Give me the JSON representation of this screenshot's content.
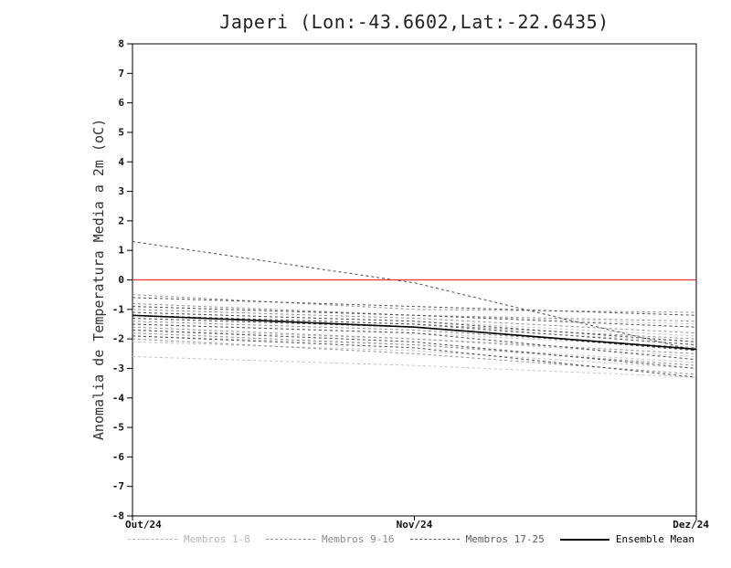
{
  "page": {
    "background": "#ffffff"
  },
  "chart_data": {
    "type": "line",
    "title": "Japeri (Lon:-43.6602,Lat:-22.6435)",
    "ylabel": "Anomalia de Temperatura Media a 2m (oC)",
    "xlabel": "",
    "x_tick_labels": [
      "Out/24",
      "Nov/24",
      "Dez/24"
    ],
    "ylim": [
      -8,
      8
    ],
    "y_tick_step": 1,
    "grid": false,
    "axis_color": "#000000",
    "zero_line": {
      "y": 0,
      "color": "#ee3333"
    },
    "groups": [
      {
        "name": "Membros 1-8",
        "color": "#c3c3c3",
        "dash": "3,3",
        "series": [
          [
            -0.9,
            -1.2,
            -1.5
          ],
          [
            -1.1,
            -1.4,
            -1.9
          ],
          [
            -1.3,
            -1.6,
            -2.1
          ],
          [
            -1.5,
            -1.8,
            -2.3
          ],
          [
            -1.7,
            -2.0,
            -2.6
          ],
          [
            -1.9,
            -2.2,
            -2.8
          ],
          [
            -2.1,
            -2.4,
            -3.0
          ],
          [
            -2.6,
            -2.9,
            -3.3
          ]
        ]
      },
      {
        "name": "Membros 9-16",
        "color": "#8f8f8f",
        "dash": "3,3",
        "series": [
          [
            -0.5,
            -1.0,
            -1.1
          ],
          [
            -0.8,
            -1.2,
            -1.4
          ],
          [
            -1.0,
            -1.3,
            -1.8
          ],
          [
            -1.2,
            -1.5,
            -2.0
          ],
          [
            -1.4,
            -1.7,
            -2.3
          ],
          [
            -1.6,
            -2.0,
            -2.5
          ],
          [
            -1.8,
            -2.2,
            -2.9
          ],
          [
            -2.0,
            -2.5,
            -3.2
          ]
        ]
      },
      {
        "name": "Membros 17-25",
        "color": "#4d4d4d",
        "dash": "3,3",
        "series": [
          [
            1.3,
            -0.1,
            -2.4
          ],
          [
            -0.6,
            -0.9,
            -1.2
          ],
          [
            -0.9,
            -1.2,
            -1.6
          ],
          [
            -1.1,
            -1.4,
            -2.1
          ],
          [
            -1.3,
            -1.6,
            -2.4
          ],
          [
            -1.5,
            -1.8,
            -2.7
          ],
          [
            -1.7,
            -2.1,
            -3.0
          ],
          [
            -1.9,
            -2.3,
            -3.3
          ],
          [
            -1.2,
            -1.5,
            -2.2
          ]
        ]
      }
    ],
    "mean": {
      "name": "Ensemble Mean",
      "color": "#000000",
      "values": [
        -1.2,
        -1.6,
        -2.35
      ]
    },
    "legend": [
      {
        "label": "Membros 1-8",
        "color": "#b5b5b5",
        "dashed": true
      },
      {
        "label": "Membros 9-16",
        "color": "#8a8a8a",
        "dashed": true
      },
      {
        "label": "Membros 17-25",
        "color": "#5a5a5a",
        "dashed": true
      },
      {
        "label": "Ensemble Mean",
        "color": "#000000",
        "dashed": false
      }
    ],
    "legend_position": "bottom"
  }
}
